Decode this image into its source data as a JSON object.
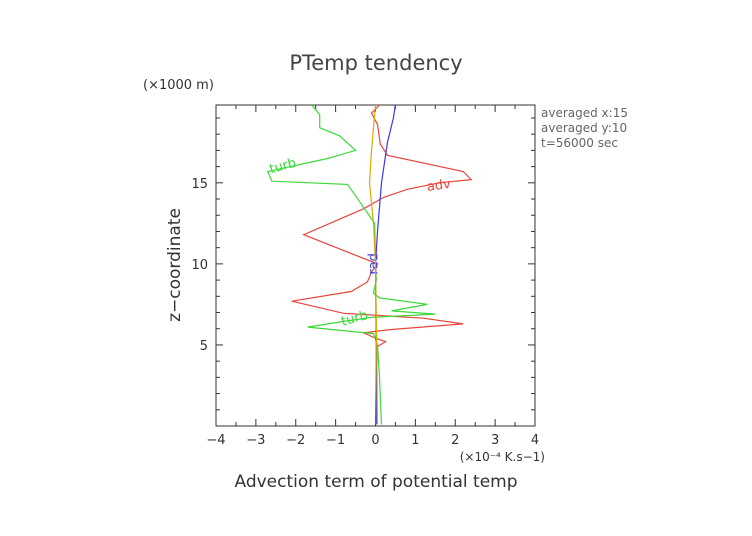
{
  "chart_data": {
    "type": "line",
    "title": "PTemp tendency",
    "xlabel": "Advection term of potential temp",
    "ylabel": "z−coordinate",
    "x_unit": "(×10⁻⁴ K.s−1)",
    "y_unit": "(×1000 m)",
    "xlim": [
      -4,
      4
    ],
    "ylim": [
      0,
      19.8
    ],
    "x_ticks": [
      "−4",
      "−3",
      "−2",
      "−1",
      "0",
      "1",
      "2",
      "3",
      "4"
    ],
    "y_ticks": [
      "5",
      "10",
      "15"
    ],
    "grid": false,
    "info_lines": [
      "averaged  x:15",
      "averaged  y:10",
      "t=56000 sec"
    ],
    "series": [
      {
        "name": "adv",
        "color": "#e8463c",
        "label_pos": [
          1.6,
          14.6
        ],
        "label_rotate": -8,
        "points": [
          [
            0.0,
            0.1
          ],
          [
            0.02,
            3.0
          ],
          [
            0.05,
            4.9
          ],
          [
            0.25,
            5.2
          ],
          [
            0.02,
            5.4
          ],
          [
            -0.3,
            5.75
          ],
          [
            0.4,
            5.95
          ],
          [
            2.2,
            6.3
          ],
          [
            1.2,
            6.65
          ],
          [
            -0.8,
            6.95
          ],
          [
            -1.4,
            7.3
          ],
          [
            -2.1,
            7.7
          ],
          [
            -0.6,
            8.3
          ],
          [
            -0.2,
            8.9
          ],
          [
            -0.1,
            9.5
          ],
          [
            0.05,
            10.0
          ],
          [
            -1.8,
            11.8
          ],
          [
            -0.3,
            13.4
          ],
          [
            0.2,
            14.1
          ],
          [
            0.8,
            14.6
          ],
          [
            1.6,
            15.0
          ],
          [
            2.4,
            15.2
          ],
          [
            2.2,
            15.7
          ],
          [
            0.3,
            16.7
          ],
          [
            0.12,
            17.4
          ],
          [
            0.05,
            18.6
          ],
          [
            -0.1,
            19.3
          ],
          [
            0.1,
            19.8
          ]
        ]
      },
      {
        "name": "turb",
        "color": "#3ed83c",
        "label_pos": [
          -2.3,
          15.8
        ],
        "label_rotate": -15,
        "label2_pos": [
          -0.5,
          6.4
        ],
        "points": [
          [
            0.15,
            0.1
          ],
          [
            0.1,
            3.0
          ],
          [
            0.05,
            5.0
          ],
          [
            -0.05,
            5.7
          ],
          [
            -1.7,
            6.1
          ],
          [
            -0.8,
            6.45
          ],
          [
            -0.1,
            6.7
          ],
          [
            1.5,
            6.9
          ],
          [
            0.4,
            7.1
          ],
          [
            1.3,
            7.5
          ],
          [
            0.1,
            7.9
          ],
          [
            -0.05,
            8.2
          ],
          [
            0.02,
            9.0
          ],
          [
            0.0,
            10.0
          ],
          [
            -0.02,
            12.5
          ],
          [
            -0.7,
            14.9
          ],
          [
            -2.6,
            15.1
          ],
          [
            -2.7,
            15.7
          ],
          [
            -1.2,
            16.5
          ],
          [
            -0.5,
            17.0
          ],
          [
            -0.9,
            17.9
          ],
          [
            -1.4,
            18.4
          ],
          [
            -1.4,
            19.2
          ],
          [
            -1.6,
            19.8
          ]
        ]
      },
      {
        "name": "rad",
        "color": "#3a3ae0",
        "label_pos": [
          0.05,
          10.0
        ],
        "label_rotate": -90,
        "points": [
          [
            0.02,
            0.1
          ],
          [
            0.02,
            5.0
          ],
          [
            0.0,
            10.0
          ],
          [
            0.05,
            12.0
          ],
          [
            0.15,
            15.0
          ],
          [
            0.3,
            17.5
          ],
          [
            0.45,
            19.0
          ],
          [
            0.5,
            19.8
          ]
        ]
      },
      {
        "name": "",
        "color": "#e0a800",
        "points": [
          [
            0.05,
            0.1
          ],
          [
            0.03,
            5.0
          ],
          [
            0.0,
            10.0
          ],
          [
            -0.05,
            12.5
          ],
          [
            -0.15,
            15.0
          ],
          [
            -0.1,
            17.0
          ],
          [
            0.0,
            19.8
          ]
        ]
      }
    ]
  }
}
